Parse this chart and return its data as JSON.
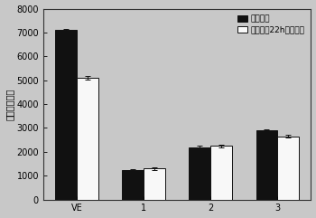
{
  "categories": [
    "VE",
    "1",
    "2",
    "3"
  ],
  "dark_values": [
    7100,
    1250,
    2200,
    2900
  ],
  "light_values": [
    5100,
    1300,
    2250,
    2650
  ],
  "dark_errors": [
    60,
    40,
    50,
    55
  ],
  "light_errors": [
    60,
    50,
    55,
    60
  ],
  "dark_color": "#111111",
  "light_color": "#f8f8f8",
  "edge_color": "#111111",
  "ylabel": "荧光发射强度",
  "legend_dark": "新陆著品",
  "legend_light": "紫外照射22h后的产品",
  "ylim": [
    0,
    8000
  ],
  "yticks": [
    0,
    1000,
    2000,
    3000,
    4000,
    5000,
    6000,
    7000,
    8000
  ],
  "plot_bg": "#c8c8c8",
  "fig_bg": "#c8c8c8",
  "bar_width": 0.32,
  "axis_fontsize": 7,
  "legend_fontsize": 6.5,
  "ylabel_fontsize": 7
}
